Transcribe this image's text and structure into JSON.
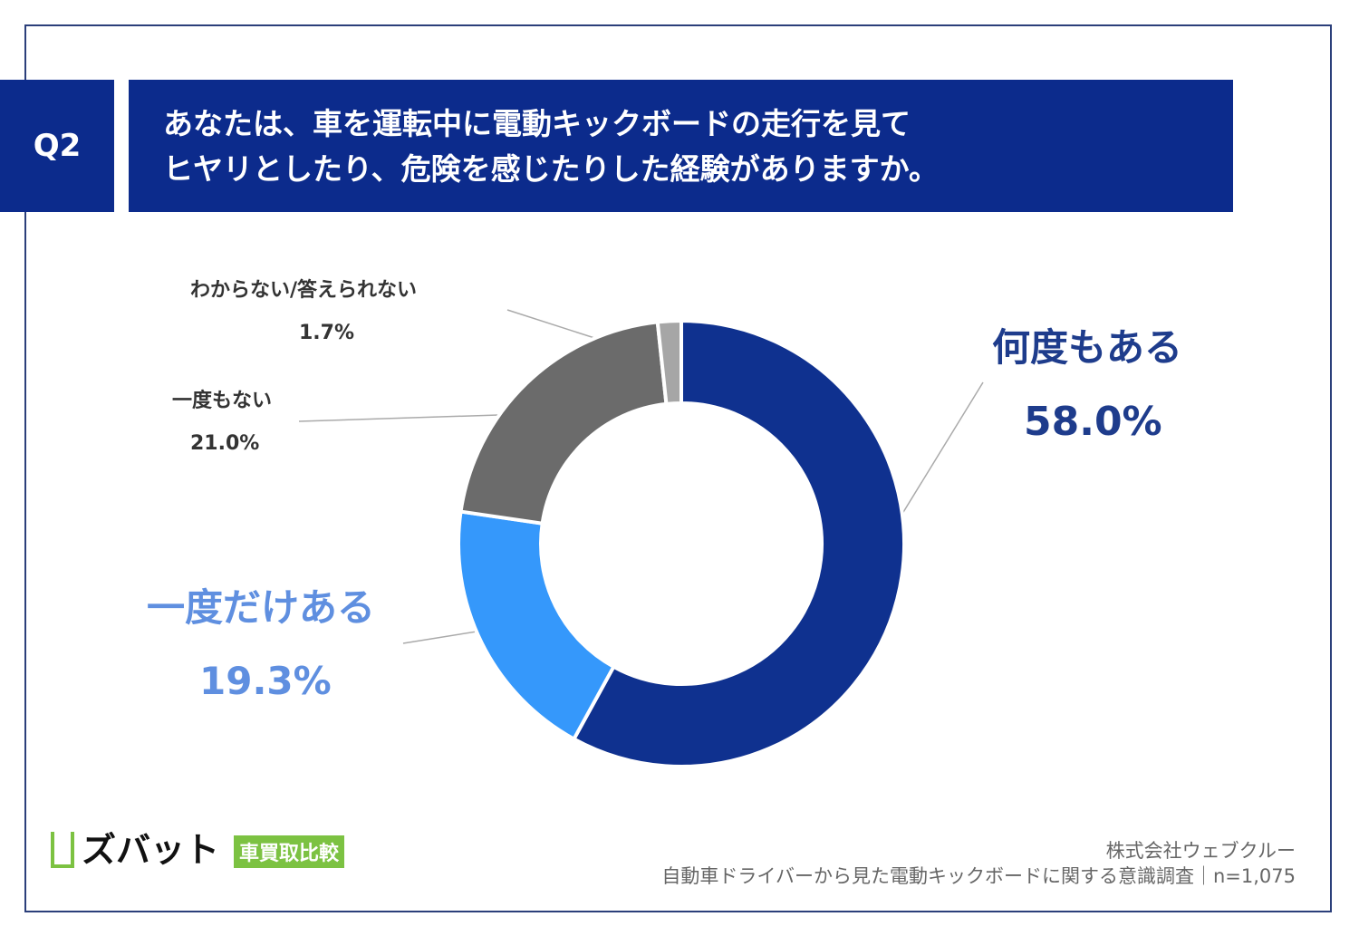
{
  "header": {
    "question_no": "Q2",
    "title_line1": "あなたは、車を運転中に電動キックボードの走行を見て",
    "title_line2": "ヒヤリとしたり、危険を感じたりした経験がありますか。"
  },
  "chart_data": {
    "type": "pie",
    "donut": true,
    "start": "12 o'clock, clockwise",
    "slices": [
      {
        "label": "何度もある",
        "value": 58.0,
        "display": "58.0%",
        "color": "#0f318f"
      },
      {
        "label": "一度だけある",
        "value": 19.3,
        "display": "19.3%",
        "color": "#3598fb"
      },
      {
        "label": "一度もない",
        "value": 21.0,
        "display": "21.0%",
        "color": "#6b6b6b"
      },
      {
        "label": "わからない/答えられない",
        "value": 1.7,
        "display": "1.7%",
        "color": "#a6a6a6"
      }
    ]
  },
  "footer": {
    "company": "株式会社ウェブクルー",
    "survey": "自動車ドライバーから見た電動キックボードに関する意識調査｜n=1,075",
    "logo_text": "ズバット",
    "logo_badge": "車買取比較"
  }
}
